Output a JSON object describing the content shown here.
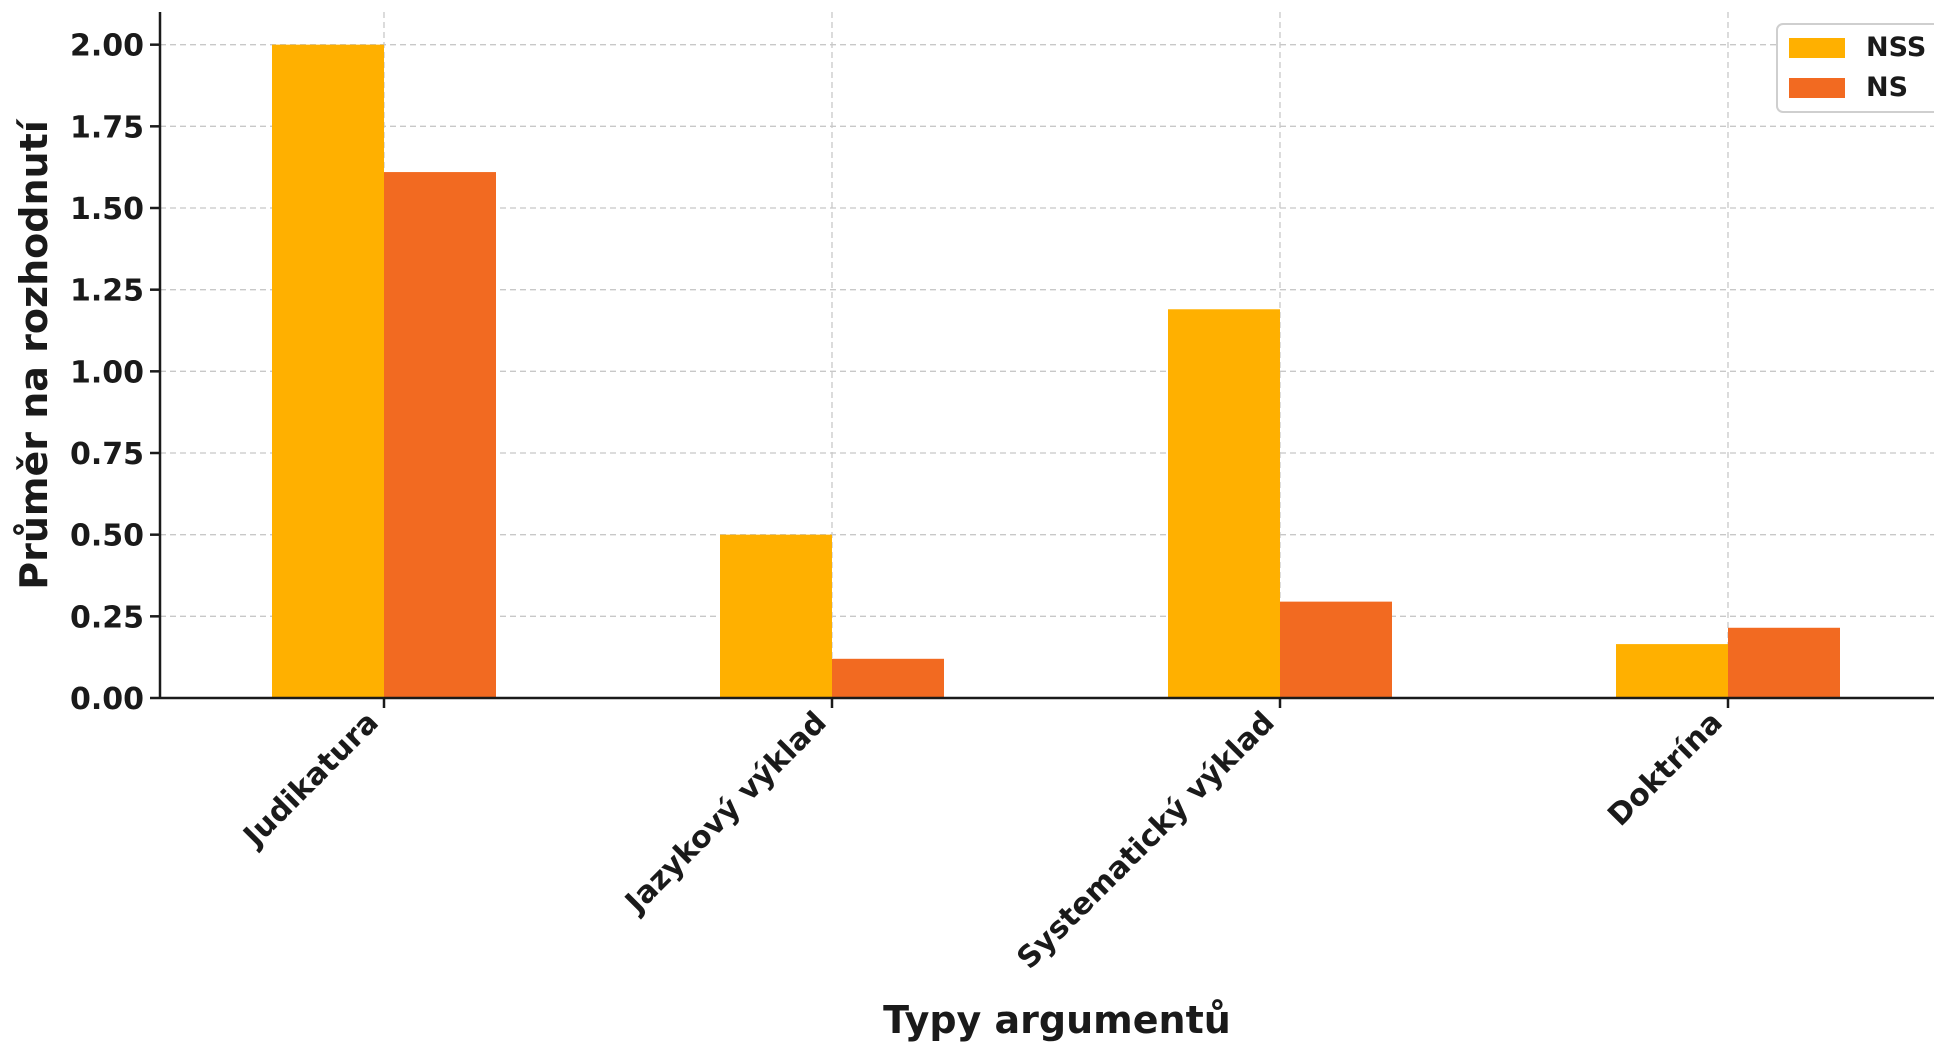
{
  "chart_data": {
    "type": "bar",
    "title": "",
    "xlabel": "Typy argumentů",
    "ylabel": "Průměr na rozhodnutí",
    "categories": [
      "Judikatura",
      "Jazykový výklad",
      "Systematický výklad",
      "Doktrína"
    ],
    "series": [
      {
        "name": "NSS",
        "color": "#FFB000",
        "values": [
          2.0,
          0.5,
          1.19,
          0.165
        ]
      },
      {
        "name": "NS",
        "color": "#F26A21",
        "values": [
          1.61,
          0.12,
          0.295,
          0.215
        ]
      }
    ],
    "ylim": [
      0,
      2.1
    ],
    "yticks": [
      "0.00",
      "0.25",
      "0.50",
      "0.75",
      "1.00",
      "1.25",
      "1.50",
      "1.75",
      "2.00"
    ],
    "grid": true,
    "legend_position": "top-right"
  }
}
